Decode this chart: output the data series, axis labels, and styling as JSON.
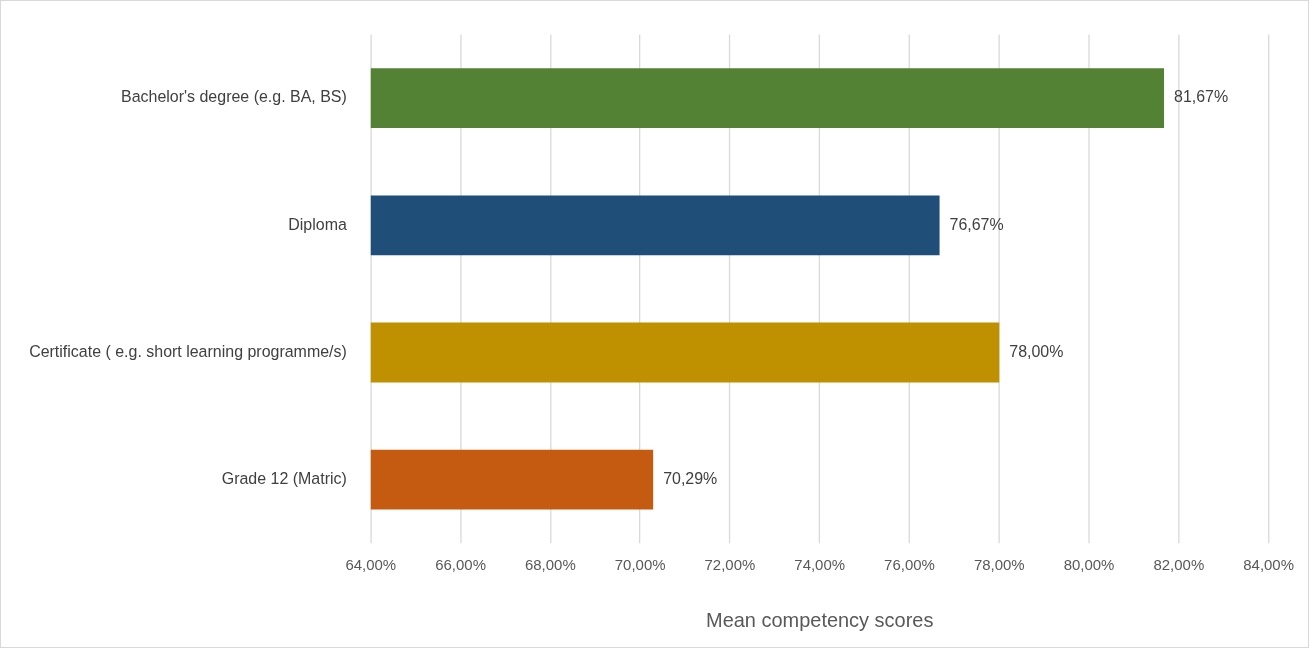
{
  "chart_data": {
    "type": "bar",
    "orientation": "horizontal",
    "xlabel": "Mean competency scores",
    "categories": [
      "Bachelor's degree (e.g. BA, BS)",
      "Diploma",
      "Certificate ( e.g. short learning programme/s)",
      "Grade 12 (Matric)"
    ],
    "values": [
      81.67,
      76.67,
      78.0,
      70.29
    ],
    "colors": [
      "#548235",
      "#1f4e79",
      "#bf9000",
      "#c55a11"
    ],
    "value_labels": [
      "81,67%",
      "76,67%",
      "78,00%",
      "70,29%"
    ],
    "xlim": [
      64,
      84
    ],
    "xticks": [
      {
        "value": 64,
        "label": "64,00%"
      },
      {
        "value": 66,
        "label": "66,00%"
      },
      {
        "value": 68,
        "label": "68,00%"
      },
      {
        "value": 70,
        "label": "70,00%"
      },
      {
        "value": 72,
        "label": "72,00%"
      },
      {
        "value": 74,
        "label": "74,00%"
      },
      {
        "value": 76,
        "label": "76,00%"
      },
      {
        "value": 78,
        "label": "78,00%"
      },
      {
        "value": 80,
        "label": "80,00%"
      },
      {
        "value": 82,
        "label": "82,00%"
      },
      {
        "value": 84,
        "label": "84,00%"
      }
    ],
    "grid": "x"
  }
}
